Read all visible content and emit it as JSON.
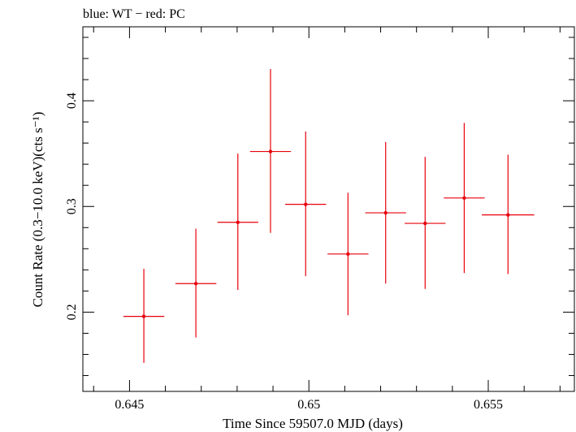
{
  "chart_data": {
    "type": "scatter",
    "title": "blue: WT − red: PC",
    "xlabel": "Time Since 59507.0 MJD (days)",
    "ylabel": "Count Rate (0.3−10.0 keV)(cts s⁻¹)",
    "xlim": [
      0.6437,
      0.6574
    ],
    "ylim": [
      0.125,
      0.47
    ],
    "x_ticks": [
      0.645,
      0.65,
      0.655
    ],
    "x_tick_labels": [
      "0.645",
      "0.65",
      "0.655"
    ],
    "y_ticks": [
      0.2,
      0.3,
      0.4
    ],
    "y_tick_labels": [
      "0.2",
      "0.3",
      "0.4"
    ],
    "grid": false,
    "series": [
      {
        "name": "PC",
        "color": "#e8000b",
        "points": [
          {
            "x": 0.6454,
            "y": 0.196,
            "xerr": 0.00057,
            "yerr_low": 0.044,
            "yerr_high": 0.045
          },
          {
            "x": 0.64685,
            "y": 0.227,
            "xerr": 0.00057,
            "yerr_low": 0.051,
            "yerr_high": 0.052
          },
          {
            "x": 0.64802,
            "y": 0.285,
            "xerr": 0.00057,
            "yerr_low": 0.064,
            "yerr_high": 0.065
          },
          {
            "x": 0.64893,
            "y": 0.352,
            "xerr": 0.00057,
            "yerr_low": 0.077,
            "yerr_high": 0.078
          },
          {
            "x": 0.64991,
            "y": 0.302,
            "xerr": 0.00057,
            "yerr_low": 0.068,
            "yerr_high": 0.069
          },
          {
            "x": 0.65109,
            "y": 0.255,
            "xerr": 0.00057,
            "yerr_low": 0.058,
            "yerr_high": 0.058
          },
          {
            "x": 0.65214,
            "y": 0.294,
            "xerr": 0.00057,
            "yerr_low": 0.067,
            "yerr_high": 0.067
          },
          {
            "x": 0.65324,
            "y": 0.284,
            "xerr": 0.00057,
            "yerr_low": 0.062,
            "yerr_high": 0.063
          },
          {
            "x": 0.65433,
            "y": 0.308,
            "xerr": 0.00057,
            "yerr_low": 0.071,
            "yerr_high": 0.071
          },
          {
            "x": 0.65555,
            "y": 0.292,
            "xerr": 0.00073,
            "yerr_low": 0.056,
            "yerr_high": 0.057
          }
        ]
      }
    ]
  }
}
